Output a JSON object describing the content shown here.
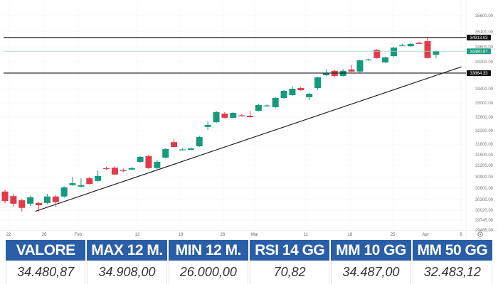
{
  "colors": {
    "up": "#159a7c",
    "down": "#e33a4a",
    "header": "#2a5ea6",
    "current": "#1f9d82",
    "level": "#111111"
  },
  "chart_data": {
    "type": "candlestick",
    "title": "",
    "y_ticks": [
      35600,
      35100,
      34600,
      34200,
      33400,
      33000,
      32600,
      32200,
      31800,
      31500,
      31200,
      30900,
      30600,
      30300,
      30020,
      29745,
      29485
    ],
    "y_tick_labels": [
      "35600.00",
      "35100.00",
      "34600.00",
      "34200.00",
      "33400.00",
      "33000.00",
      "32600.00",
      "32200.00",
      "31800.00",
      "31500.00",
      "31200.00",
      "30900.00",
      "30600.00",
      "30300.00",
      "30020.00",
      "29745.00",
      "29485.00"
    ],
    "x_tick_labels": [
      "22",
      "26",
      "Feb",
      "12",
      "19",
      "26",
      "Mar",
      "11",
      "18",
      "25",
      "Apr",
      "8"
    ],
    "levels": [
      {
        "name": "resistance",
        "value": 34913.03,
        "label": "34913.03"
      },
      {
        "name": "current",
        "value": 34480.87,
        "label": "34480.87"
      },
      {
        "name": "support",
        "value": 33864.33,
        "label": "33864.33"
      }
    ],
    "trendline": {
      "from": {
        "candle": 3.6,
        "price": 29990
      },
      "to": {
        "candle": 54,
        "price": 34050
      }
    },
    "candles": [
      [
        30510,
        30560,
        30200,
        30260
      ],
      [
        30390,
        30450,
        30120,
        30190
      ],
      [
        30280,
        30320,
        29980,
        30080
      ],
      [
        30190,
        30400,
        30130,
        30360
      ],
      [
        30210,
        30230,
        29980,
        30150
      ],
      [
        30210,
        30450,
        30170,
        30380
      ],
      [
        30380,
        30420,
        30110,
        30230
      ],
      [
        30380,
        30650,
        30340,
        30620
      ],
      [
        30680,
        30900,
        30660,
        30730
      ],
      [
        30640,
        30860,
        30620,
        30680
      ],
      [
        30860,
        30900,
        30690,
        30710
      ],
      [
        30790,
        31070,
        30770,
        30920
      ],
      [
        31130,
        31160,
        31080,
        31110
      ],
      [
        31140,
        31180,
        30940,
        30960
      ],
      [
        31070,
        31120,
        31020,
        31060
      ],
      [
        31090,
        31160,
        31070,
        31130
      ],
      [
        31300,
        31470,
        31280,
        31440
      ],
      [
        31460,
        31500,
        31110,
        31130
      ],
      [
        31130,
        31360,
        31100,
        31300
      ],
      [
        31420,
        31690,
        31400,
        31660
      ],
      [
        31860,
        31940,
        31700,
        31720
      ],
      [
        31640,
        31680,
        31620,
        31650
      ],
      [
        31640,
        31700,
        31630,
        31680
      ],
      [
        31740,
        32050,
        31720,
        32010
      ],
      [
        32310,
        32470,
        32220,
        32370
      ],
      [
        32450,
        32780,
        32420,
        32740
      ],
      [
        32700,
        32740,
        32560,
        32580
      ],
      [
        32580,
        32740,
        32560,
        32720
      ],
      [
        32650,
        32680,
        32620,
        32640
      ],
      [
        32640,
        32780,
        32580,
        32600
      ],
      [
        32780,
        32980,
        32760,
        32940
      ],
      [
        32910,
        32960,
        32890,
        32930
      ],
      [
        32880,
        33170,
        32860,
        33140
      ],
      [
        33140,
        33360,
        33120,
        33340
      ],
      [
        33220,
        33480,
        33200,
        33400
      ],
      [
        33420,
        33460,
        33340,
        33360
      ],
      [
        33160,
        33280,
        33080,
        33260
      ],
      [
        33420,
        33760,
        33360,
        33740
      ],
      [
        33800,
        33990,
        33780,
        33860
      ],
      [
        33930,
        33970,
        33740,
        33780
      ],
      [
        33780,
        33990,
        33760,
        33930
      ],
      [
        33970,
        34110,
        33890,
        33910
      ],
      [
        33910,
        34260,
        33880,
        34240
      ],
      [
        34240,
        34280,
        34220,
        34260
      ],
      [
        34520,
        34540,
        34280,
        34300
      ],
      [
        34180,
        34340,
        34160,
        34320
      ],
      [
        34350,
        34600,
        34330,
        34580
      ],
      [
        34640,
        34700,
        34630,
        34650
      ],
      [
        34620,
        34720,
        34600,
        34700
      ],
      [
        34740,
        34770,
        34690,
        34700
      ],
      [
        34790,
        34910,
        34290,
        34300
      ],
      [
        34390,
        34500,
        34290,
        34480.87
      ]
    ]
  },
  "table": {
    "headers": [
      "VALORE",
      "MAX 12 M.",
      "MIN 12 M.",
      "RSI 14 GG",
      "MM 10 GG",
      "MM 50 GG"
    ],
    "values": [
      "34.480,87",
      "34.908,00",
      "26.000,00",
      "70,82",
      "34.487,00",
      "32.483,12"
    ]
  }
}
